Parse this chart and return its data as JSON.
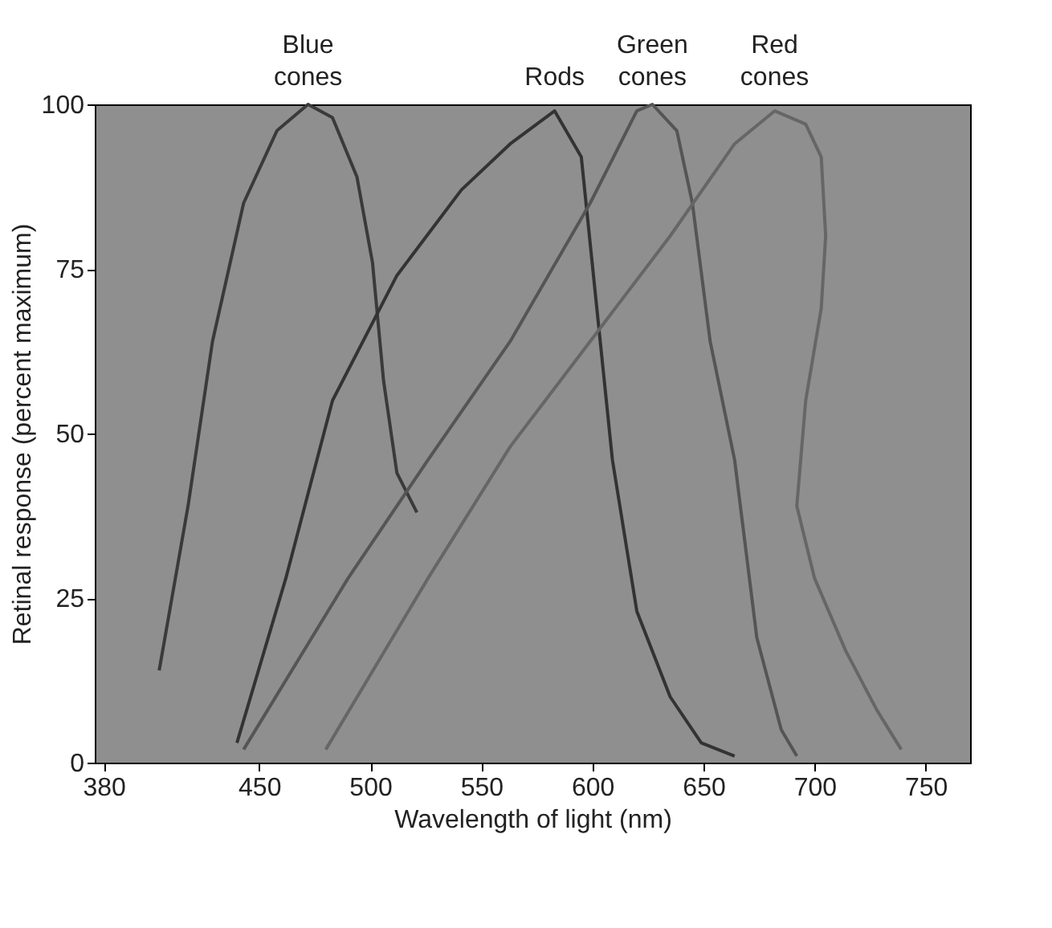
{
  "chart_data": {
    "type": "line",
    "xlabel": "Wavelength of light (nm)",
    "ylabel": "Retinal response (percent maximum)",
    "xlim": [
      376,
      770
    ],
    "xticks": [
      380,
      450,
      500,
      550,
      600,
      650,
      700,
      750
    ],
    "ylim": [
      0,
      100
    ],
    "yticks": [
      0,
      25,
      50,
      75,
      100
    ],
    "grid": false,
    "legend": false,
    "marker": "none",
    "line_style": "solid",
    "series": [
      {
        "name": "Blue\ncones",
        "color": "#3a3a3a",
        "x": [
          405,
          418,
          429,
          443,
          458,
          472,
          483,
          494,
          501,
          506,
          512,
          521
        ],
        "values": [
          14,
          39,
          64,
          85,
          96,
          100,
          98,
          89,
          76,
          58,
          44,
          38
        ]
      },
      {
        "name": "Rods",
        "color": "#333333",
        "x": [
          440,
          462,
          483,
          512,
          541,
          563,
          583,
          595,
          602,
          609,
          620,
          635,
          649,
          664
        ],
        "values": [
          3,
          28,
          55,
          74,
          87,
          94,
          99,
          92,
          69,
          46,
          23,
          10,
          3,
          1
        ]
      },
      {
        "name": "Green\ncones",
        "color": "#555555",
        "x": [
          443,
          490,
          526,
          563,
          599,
          620,
          627,
          638,
          645,
          653,
          664,
          674,
          685,
          692
        ],
        "values": [
          2,
          28,
          46,
          64,
          85,
          99,
          100,
          96,
          85,
          64,
          46,
          19,
          5,
          1
        ]
      },
      {
        "name": "Red\ncones",
        "color": "#666666",
        "x": [
          480,
          526,
          563,
          599,
          635,
          664,
          682,
          696,
          703,
          705,
          703,
          696,
          692,
          700,
          714,
          728,
          739
        ],
        "values": [
          2,
          28,
          48,
          64,
          80,
          94,
          99,
          97,
          92,
          80,
          69,
          55,
          39,
          28,
          17,
          8,
          2
        ]
      }
    ]
  }
}
